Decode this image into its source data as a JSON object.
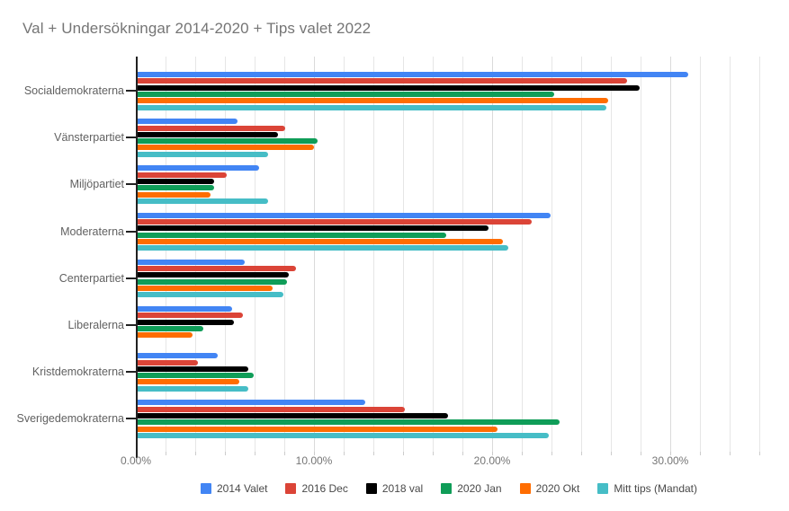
{
  "chart_data": {
    "type": "bar",
    "orientation": "horizontal",
    "title": "Val + Undersökningar 2014-2020 + Tips valet 2022",
    "categories": [
      "Socialdemokraterna",
      "Vänsterpartiet",
      "Miljöpartiet",
      "Moderaterna",
      "Centerpartiet",
      "Liberalerna",
      "Kristdemokraterna",
      "Sverigedemokraterna"
    ],
    "series": [
      {
        "name": "2014 Valet",
        "color": "#4285F4",
        "values": [
          31.0,
          5.7,
          6.9,
          23.3,
          6.1,
          5.4,
          4.6,
          12.9
        ]
      },
      {
        "name": "2016 Dec",
        "color": "#DB4437",
        "values": [
          27.6,
          8.4,
          5.1,
          22.2,
          9.0,
          6.0,
          3.5,
          15.1
        ]
      },
      {
        "name": "2018 val",
        "color": "#000000",
        "values": [
          28.3,
          8.0,
          4.4,
          19.8,
          8.6,
          5.5,
          6.3,
          17.5
        ]
      },
      {
        "name": "2020 Jan",
        "color": "#0F9D58",
        "values": [
          23.5,
          10.2,
          4.4,
          17.4,
          8.5,
          3.8,
          6.6,
          23.8
        ]
      },
      {
        "name": "2020 Okt",
        "color": "#FF6D01",
        "values": [
          26.5,
          10.0,
          4.2,
          20.6,
          7.7,
          3.2,
          5.8,
          20.3
        ]
      },
      {
        "name": "Mitt tips (Mandat)",
        "color": "#46BDC6",
        "values": [
          26.4,
          7.4,
          7.4,
          20.9,
          8.3,
          0.0,
          6.3,
          23.2
        ]
      }
    ],
    "x_axis": {
      "unit": "%",
      "tick_values": [
        0,
        10,
        20,
        30
      ],
      "tick_labels": [
        "0.00%",
        "10.00%",
        "20.00%",
        "30.00%"
      ],
      "max": 36.67,
      "minor_step": 1.6667
    },
    "legend_position": "bottom",
    "grid": true,
    "background": "#ffffff",
    "title_color": "#757575"
  }
}
